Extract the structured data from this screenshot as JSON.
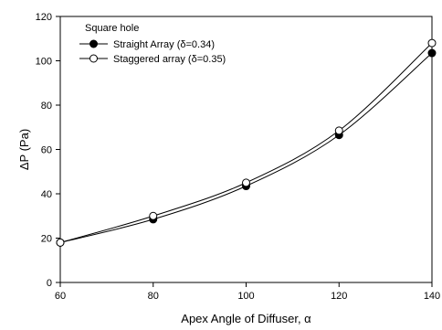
{
  "chart_data": {
    "type": "line",
    "title": "",
    "xlabel": "Apex Angle of Diffuser, α",
    "ylabel": "ΔP (Pa)",
    "xlim": [
      60,
      140
    ],
    "ylim": [
      0,
      120
    ],
    "xticks": [
      60,
      80,
      100,
      120,
      140
    ],
    "yticks": [
      0,
      20,
      40,
      60,
      80,
      100,
      120
    ],
    "grid": false,
    "legend_title": "Square hole",
    "legend_position": "top-left",
    "x": [
      60,
      80,
      100,
      120,
      140
    ],
    "series": [
      {
        "name": "Straight Array (δ=0.34)",
        "values": [
          18,
          28.5,
          43.5,
          66.5,
          103.5
        ],
        "marker": "filled-circle",
        "color": "#000000"
      },
      {
        "name": "Staggered array (δ=0.35)",
        "values": [
          18,
          30,
          45,
          68.5,
          108
        ],
        "marker": "open-circle",
        "color": "#000000"
      }
    ]
  }
}
